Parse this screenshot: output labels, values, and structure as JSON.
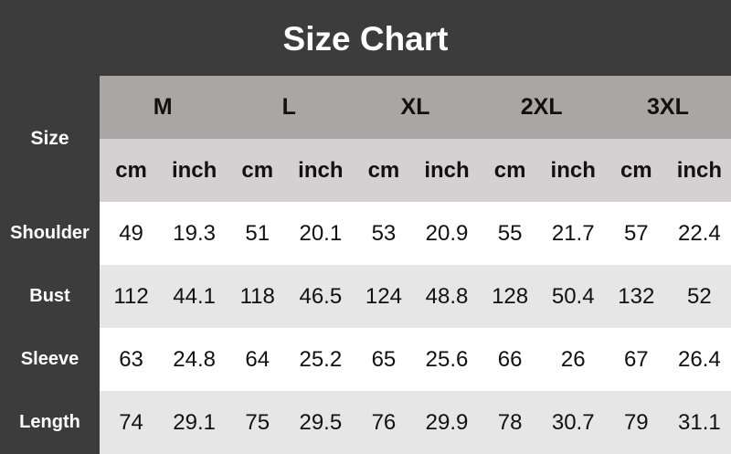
{
  "title": "Size Chart",
  "size_label": "Size",
  "sizes": [
    "M",
    "L",
    "XL",
    "2XL",
    "3XL"
  ],
  "units": [
    "cm",
    "inch"
  ],
  "rows": [
    {
      "label": "Shoulder",
      "values": [
        "49",
        "19.3",
        "51",
        "20.1",
        "53",
        "20.9",
        "55",
        "21.7",
        "57",
        "22.4"
      ]
    },
    {
      "label": "Bust",
      "values": [
        "112",
        "44.1",
        "118",
        "46.5",
        "124",
        "48.8",
        "128",
        "50.4",
        "132",
        "52"
      ]
    },
    {
      "label": "Sleeve",
      "values": [
        "63",
        "24.8",
        "64",
        "25.2",
        "65",
        "25.6",
        "66",
        "26",
        "67",
        "26.4"
      ]
    },
    {
      "label": "Length",
      "values": [
        "74",
        "29.1",
        "75",
        "29.5",
        "76",
        "29.9",
        "78",
        "30.7",
        "79",
        "31.1"
      ]
    }
  ],
  "colors": {
    "background": "#3c3c3c",
    "size_header": "#aaa6a6",
    "unit_header": "#d3d1d1",
    "alt_row": "#e6e6e6"
  }
}
